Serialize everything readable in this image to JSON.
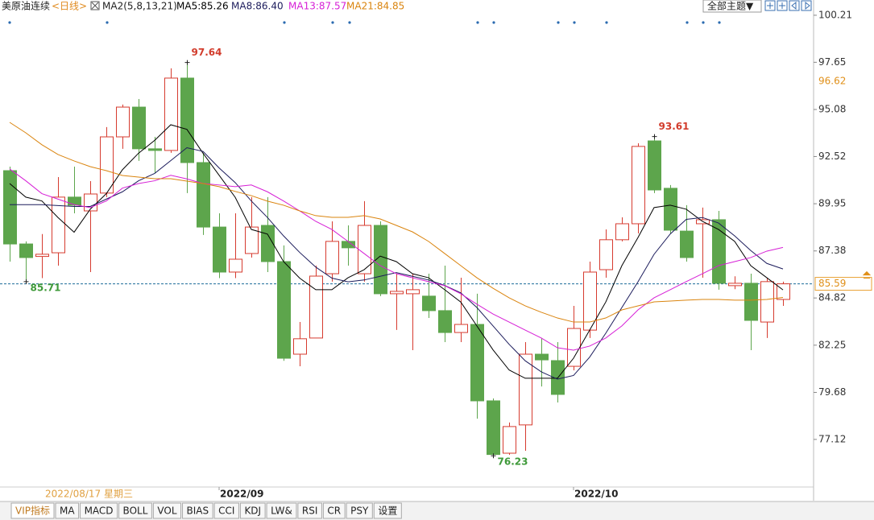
{
  "chart_data": {
    "type": "candlestick",
    "title": "美原油连续",
    "period": "<日线>",
    "indicator": "MA2(5,8,13,21)",
    "cursor_label": "2022/08/17 星期三",
    "categories": [
      null,
      null,
      null,
      null,
      null,
      null,
      null,
      null,
      null,
      null,
      null,
      null,
      null,
      "2022/09",
      null,
      null,
      null,
      null,
      null,
      null,
      null,
      null,
      null,
      null,
      null,
      null,
      null,
      null,
      null,
      null,
      null,
      null,
      null,
      null,
      null,
      "2022/10",
      null,
      null,
      null,
      null,
      null,
      null,
      null,
      null,
      null,
      null,
      null,
      null,
      null
    ],
    "open": [
      91.75,
      87.76,
      87.08,
      87.28,
      90.31,
      89.56,
      90.53,
      93.59,
      95.21,
      92.94,
      92.85,
      96.79,
      92.19,
      88.68,
      86.23,
      87.24,
      88.77,
      86.8,
      81.76,
      82.64,
      86.14,
      87.9,
      86.14,
      88.77,
      85.05,
      85.05,
      84.92,
      84.13,
      82.94,
      83.38,
      79.22,
      76.37,
      77.91,
      81.76,
      81.41,
      81.1,
      83.07,
      86.36,
      87.99,
      88.86,
      93.37,
      90.79,
      88.46,
      88.86,
      89.08,
      85.49,
      85.62,
      83.51,
      84.74
    ],
    "high": [
      91.97,
      87.9,
      88.3,
      91.4,
      91.97,
      91.18,
      94.12,
      95.35,
      95.65,
      93.59,
      97.32,
      97.64,
      92.72,
      89.43,
      89.43,
      90.31,
      90.31,
      87.68,
      83.51,
      86.58,
      88.99,
      88.77,
      90.09,
      88.99,
      86.14,
      86.14,
      86.14,
      86.58,
      85.92,
      85.05,
      79.35,
      78.04,
      82.42,
      82.64,
      82.42,
      84.39,
      86.8,
      88.55,
      89.21,
      93.24,
      93.61,
      90.97,
      89.87,
      89.74,
      89.56,
      86.0,
      86.14,
      85.92,
      85.71
    ],
    "low": [
      86.8,
      85.71,
      85.9,
      86.58,
      89.43,
      86.23,
      90.31,
      92.94,
      92.28,
      91.62,
      92.72,
      90.53,
      88.25,
      85.9,
      85.9,
      87.02,
      86.23,
      81.4,
      81.1,
      82.64,
      85.71,
      86.58,
      85.71,
      84.92,
      83.08,
      81.98,
      83.73,
      82.42,
      82.42,
      78.25,
      76.23,
      76.28,
      76.5,
      80.0,
      79.13,
      80.88,
      82.64,
      85.92,
      87.9,
      88.33,
      90.53,
      88.33,
      86.8,
      85.92,
      85.27,
      85.3,
      81.98,
      82.64,
      84.39
    ],
    "close": [
      87.76,
      87.02,
      87.2,
      90.31,
      89.87,
      90.48,
      93.59,
      95.21,
      92.94,
      92.85,
      96.79,
      92.19,
      88.68,
      86.23,
      86.93,
      88.68,
      86.8,
      81.54,
      82.6,
      86.01,
      87.9,
      87.55,
      88.77,
      85.05,
      85.18,
      85.27,
      84.13,
      82.94,
      83.38,
      79.22,
      76.3,
      77.82,
      81.76,
      81.45,
      79.57,
      83.16,
      86.23,
      87.99,
      88.86,
      93.07,
      90.7,
      88.51,
      87.02,
      89.08,
      85.62,
      85.62,
      83.6,
      85.71,
      85.59
    ],
    "up_color": "#d63b2f",
    "down_color": "#5da54c",
    "series": [
      {
        "name": "MA5:85.26",
        "color": "#000000",
        "values": [
          91.05,
          90.31,
          90.1,
          89.2,
          88.4,
          89.65,
          90.5,
          91.8,
          92.7,
          93.4,
          94.25,
          94.0,
          92.7,
          91.5,
          90.3,
          88.55,
          88.3,
          86.8,
          85.9,
          85.27,
          85.27,
          85.92,
          86.36,
          87.1,
          86.8,
          86.14,
          85.92,
          85.27,
          84.6,
          83.3,
          82.0,
          80.9,
          80.45,
          80.45,
          80.45,
          81.54,
          83.07,
          84.6,
          86.58,
          88.11,
          89.74,
          89.87,
          89.65,
          88.99,
          88.55,
          87.9,
          86.58,
          85.92,
          85.26
        ]
      },
      {
        "name": "MA8:86.40",
        "color": "#1c1c5c",
        "values": [
          89.9,
          89.9,
          89.9,
          89.85,
          89.8,
          89.8,
          90.2,
          90.6,
          91.2,
          91.6,
          92.3,
          93.0,
          92.8,
          91.9,
          91.1,
          90.1,
          89.2,
          88.2,
          87.3,
          86.5,
          85.9,
          85.7,
          85.8,
          86.0,
          86.2,
          86.0,
          85.8,
          85.5,
          85.1,
          84.3,
          83.3,
          82.3,
          81.4,
          80.8,
          80.4,
          80.6,
          81.6,
          82.9,
          84.3,
          85.7,
          87.2,
          88.3,
          89.1,
          89.2,
          88.9,
          88.2,
          87.4,
          86.7,
          86.4
        ]
      },
      {
        "name": "MA13:87.57",
        "color": "#d61fd6",
        "values": [
          91.84,
          91.2,
          90.5,
          90.2,
          89.9,
          89.74,
          90.1,
          90.8,
          91.05,
          91.2,
          91.5,
          91.3,
          91.05,
          90.97,
          90.88,
          90.97,
          90.6,
          90.1,
          89.56,
          88.99,
          88.55,
          87.9,
          87.24,
          86.58,
          86.14,
          85.92,
          85.71,
          85.49,
          85.05,
          84.48,
          83.95,
          83.51,
          83.07,
          82.64,
          82.11,
          81.98,
          82.2,
          82.64,
          83.3,
          84.17,
          84.83,
          85.27,
          85.71,
          86.14,
          86.58,
          86.8,
          87.02,
          87.37,
          87.57
        ]
      },
      {
        "name": "MA21:84.85",
        "color": "#da840e",
        "values": [
          94.38,
          93.81,
          93.16,
          92.63,
          92.28,
          91.97,
          91.75,
          91.49,
          91.4,
          91.31,
          91.31,
          91.18,
          91.05,
          90.88,
          90.62,
          90.39,
          90.09,
          89.87,
          89.56,
          89.3,
          89.21,
          89.21,
          89.3,
          89.12,
          88.77,
          88.42,
          87.9,
          87.24,
          86.58,
          85.92,
          85.35,
          84.83,
          84.39,
          84.04,
          83.73,
          83.51,
          83.51,
          83.73,
          84.17,
          84.39,
          84.61,
          84.65,
          84.7,
          84.74,
          84.74,
          84.7,
          84.7,
          84.74,
          84.85
        ]
      }
    ],
    "ylim": [
      74.53,
      101.04
    ],
    "yticks": [
      100.21,
      97.65,
      95.08,
      92.52,
      89.95,
      87.38,
      84.82,
      82.25,
      79.68,
      77.12
    ],
    "grid": false,
    "axis_marker": 96.62
  },
  "toolbar": {
    "theme": "全部主题▼"
  },
  "tabs": [
    "VIP指标",
    "MA",
    "MACD",
    "BOLL",
    "VOL",
    "BIAS",
    "CCI",
    "KDJ",
    "LW&",
    "RSI",
    "CR",
    "PSY",
    "设置"
  ]
}
